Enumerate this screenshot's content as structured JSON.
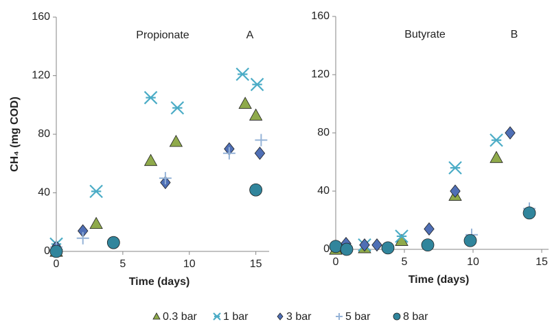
{
  "chart_data": [
    {
      "type": "scatter",
      "title": "Propionate",
      "panel_label": "A",
      "x_label": "Time (days)",
      "y_label": "CH₄ (mg COD)",
      "xlim": [
        0,
        16
      ],
      "xticks": [
        0,
        5,
        10,
        15
      ],
      "ylim": [
        0,
        160
      ],
      "yticks": [
        0,
        40,
        80,
        120,
        160
      ],
      "series": [
        {
          "name": "0.3 bar",
          "marker": "triangle",
          "color": "#8faa4b",
          "x": [
            0,
            3,
            7.1,
            9,
            14.2,
            15
          ],
          "values": [
            0,
            19,
            62,
            75,
            101,
            93
          ]
        },
        {
          "name": "1 bar",
          "marker": "asterisk",
          "color": "#4bacc6",
          "x": [
            0,
            3,
            7.1,
            9.1,
            14,
            15.1
          ],
          "values": [
            5,
            41,
            105,
            98,
            121,
            114
          ]
        },
        {
          "name": "3 bar",
          "marker": "diamond",
          "color": "#4f6fb5",
          "x": [
            0,
            2,
            8.2,
            13,
            15.3
          ],
          "values": [
            3,
            14,
            47,
            70,
            67
          ]
        },
        {
          "name": "5 bar",
          "marker": "plus",
          "color": "#95b3d7",
          "x": [
            0,
            2,
            8.2,
            13,
            15.4
          ],
          "values": [
            3,
            9,
            50,
            67,
            76
          ]
        },
        {
          "name": "8 bar",
          "marker": "circle",
          "color": "#31859c",
          "x": [
            0,
            4.3,
            15
          ],
          "values": [
            0,
            6,
            42
          ]
        }
      ]
    },
    {
      "type": "scatter",
      "title": "Butyrate",
      "panel_label": "B",
      "x_label": "Time (days)",
      "xlim": [
        0,
        15.5
      ],
      "xticks": [
        0,
        5,
        10,
        15
      ],
      "ylim": [
        0,
        160
      ],
      "yticks": [
        0,
        40,
        80,
        120,
        160
      ],
      "series": [
        {
          "marker": "triangle",
          "color": "#8faa4b",
          "x": [
            0,
            2.1,
            4.8,
            8.7,
            11.7
          ],
          "values": [
            0,
            1,
            6,
            37,
            63
          ]
        },
        {
          "marker": "asterisk",
          "color": "#4bacc6",
          "x": [
            2.1,
            4.8,
            8.7,
            11.7
          ],
          "values": [
            3,
            9,
            56,
            75
          ]
        },
        {
          "marker": "diamond",
          "color": "#4f6fb5",
          "x": [
            0.75,
            2.1,
            3,
            6.8,
            8.7,
            12.7
          ],
          "values": [
            4,
            3,
            3,
            14,
            40,
            80
          ]
        },
        {
          "marker": "plus",
          "color": "#95b3d7",
          "x": [
            9.9,
            14.1
          ],
          "values": [
            10,
            28
          ]
        },
        {
          "marker": "circle",
          "color": "#31859c",
          "x": [
            0,
            0.8,
            3.8,
            6.7,
            9.8,
            14.1
          ],
          "values": [
            2,
            0,
            1,
            3,
            6,
            25
          ]
        }
      ]
    }
  ]
}
